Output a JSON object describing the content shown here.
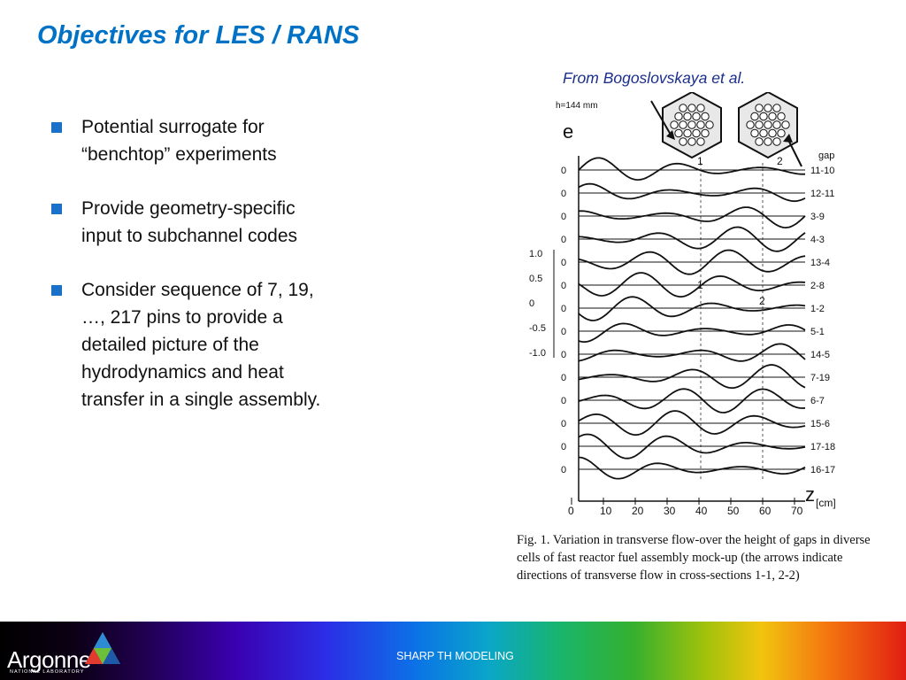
{
  "slide": {
    "title": "Objectives for LES / RANS",
    "credit": "From Bogoslovskaya et al.",
    "bullets": [
      {
        "lines": [
          "Potential surrogate for",
          "“benchtop” experiments"
        ]
      },
      {
        "lines": [
          "Provide geometry-specific",
          "input to subchannel codes"
        ]
      },
      {
        "lines": [
          "Consider sequence of 7, 19,",
          "…, 217 pins to provide a",
          "detailed picture of the",
          "hydrodynamics and heat",
          "transfer in a single assembly."
        ]
      }
    ]
  },
  "figure": {
    "h_label": "h=144 mm",
    "e_label": "e",
    "gap_header": "gap",
    "gaps": [
      "11-10",
      "12-11",
      "3-9",
      "4-3",
      "13-4",
      "2-8",
      "1-2",
      "5-1",
      "14-5",
      "7-19",
      "6-7",
      "15-6",
      "17-18",
      "16-17"
    ],
    "zero_label": "0",
    "scale_labels": [
      "1.0",
      "0.5",
      "0",
      "-0.5",
      "-1.0"
    ],
    "x_ticks": [
      "0",
      "10",
      "20",
      "30",
      "40",
      "50",
      "60",
      "70"
    ],
    "x_axis_symbol": "z",
    "x_axis_unit": "[cm]",
    "section_labels": [
      "1",
      "2"
    ],
    "caption_lines": [
      "Fig. 1.  Variation in transverse flow-over  the height of gaps in diverse",
      "cells of fast reactor fuel assembly mock-up (the arrows indicate",
      "directions of transverse flow in cross-sections 1-1, 2-2)"
    ]
  },
  "footer": {
    "logo_text": "Argonne",
    "logo_subtext": "NATIONAL LABORATORY",
    "label": "SHARP TH MODELING"
  },
  "colors": {
    "title": "#0072c6",
    "credit": "#1a2e8c",
    "bullet": "#1b70c9"
  }
}
